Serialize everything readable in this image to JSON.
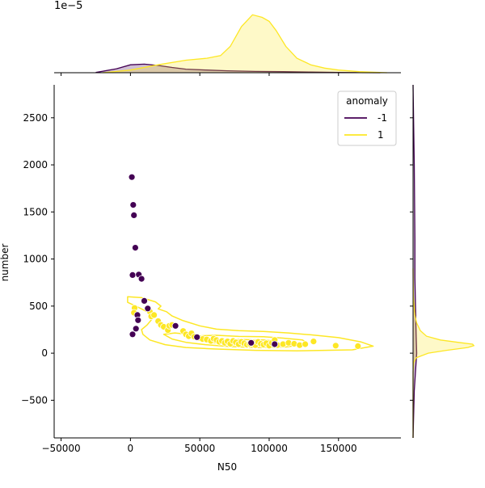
{
  "chart_data": {
    "type": "scatter",
    "xlabel": "N50",
    "ylabel": "number",
    "xlim": [
      -55000,
      195000
    ],
    "ylim": [
      -900,
      2850
    ],
    "x_ticks": [
      -50000,
      0,
      50000,
      100000,
      150000
    ],
    "y_ticks": [
      -500,
      0,
      500,
      1000,
      1500,
      2000,
      2500
    ],
    "top_scale_label": "1e−5",
    "legend": {
      "title": "anomaly",
      "placement": "top-right",
      "entries": [
        "-1",
        "1"
      ]
    },
    "colors": {
      "-1": "#440154",
      "1": "#fde725"
    },
    "series": [
      {
        "name": "-1",
        "points": [
          [
            1000,
            1870
          ],
          [
            2000,
            1575
          ],
          [
            2500,
            1465
          ],
          [
            3500,
            1120
          ],
          [
            1500,
            830
          ],
          [
            6000,
            835
          ],
          [
            8000,
            790
          ],
          [
            10000,
            555
          ],
          [
            12500,
            475
          ],
          [
            5000,
            405
          ],
          [
            5500,
            350
          ],
          [
            4000,
            260
          ],
          [
            1500,
            200
          ],
          [
            32500,
            290
          ],
          [
            48000,
            170
          ],
          [
            87000,
            110
          ],
          [
            104000,
            95
          ]
        ]
      },
      {
        "name": "1",
        "points": [
          [
            3000,
            480
          ],
          [
            2500,
            430
          ],
          [
            14000,
            440
          ],
          [
            15000,
            390
          ],
          [
            17000,
            405
          ],
          [
            20000,
            340
          ],
          [
            22000,
            300
          ],
          [
            24000,
            280
          ],
          [
            27000,
            245
          ],
          [
            28000,
            290
          ],
          [
            30000,
            300
          ],
          [
            38000,
            235
          ],
          [
            40000,
            200
          ],
          [
            42000,
            180
          ],
          [
            44000,
            210
          ],
          [
            46000,
            175
          ],
          [
            50000,
            160
          ],
          [
            52000,
            150
          ],
          [
            55000,
            145
          ],
          [
            58000,
            130
          ],
          [
            60000,
            155
          ],
          [
            62000,
            140
          ],
          [
            64000,
            120
          ],
          [
            66000,
            130
          ],
          [
            68000,
            110
          ],
          [
            70000,
            125
          ],
          [
            72000,
            100
          ],
          [
            74000,
            130
          ],
          [
            76000,
            115
          ],
          [
            78000,
            95
          ],
          [
            80000,
            120
          ],
          [
            82000,
            105
          ],
          [
            84000,
            90
          ],
          [
            86000,
            100
          ],
          [
            88000,
            115
          ],
          [
            90000,
            85
          ],
          [
            92000,
            120
          ],
          [
            94000,
            100
          ],
          [
            96000,
            90
          ],
          [
            98000,
            105
          ],
          [
            100000,
            80
          ],
          [
            102000,
            110
          ],
          [
            104000,
            140
          ],
          [
            106000,
            85
          ],
          [
            110000,
            95
          ],
          [
            114000,
            110
          ],
          [
            118000,
            100
          ],
          [
            122000,
            85
          ],
          [
            126000,
            95
          ],
          [
            132000,
            125
          ],
          [
            148000,
            80
          ],
          [
            164000,
            75
          ]
        ]
      }
    ],
    "kde_contours": [
      {
        "series": "1",
        "outline": [
          [
            -2000,
            600
          ],
          [
            8000,
            590
          ],
          [
            18000,
            545
          ],
          [
            22000,
            500
          ],
          [
            20000,
            470
          ],
          [
            26000,
            440
          ],
          [
            30000,
            395
          ],
          [
            38000,
            345
          ],
          [
            50000,
            290
          ],
          [
            62000,
            255
          ],
          [
            78000,
            240
          ],
          [
            96000,
            230
          ],
          [
            114000,
            215
          ],
          [
            130000,
            195
          ],
          [
            150000,
            165
          ],
          [
            166000,
            120
          ],
          [
            175000,
            75
          ],
          [
            160000,
            35
          ],
          [
            120000,
            25
          ],
          [
            90000,
            30
          ],
          [
            60000,
            45
          ],
          [
            40000,
            60
          ],
          [
            25000,
            90
          ],
          [
            14000,
            140
          ],
          [
            9000,
            200
          ],
          [
            8000,
            250
          ],
          [
            12000,
            300
          ],
          [
            16000,
            370
          ],
          [
            12000,
            440
          ],
          [
            4000,
            500
          ],
          [
            -2000,
            540
          ]
        ]
      },
      {
        "series": "1",
        "outline": [
          [
            50000,
            185
          ],
          [
            62000,
            190
          ],
          [
            78000,
            178
          ],
          [
            96000,
            175
          ],
          [
            110000,
            160
          ],
          [
            124000,
            140
          ],
          [
            128000,
            100
          ],
          [
            112000,
            65
          ],
          [
            92000,
            60
          ],
          [
            72000,
            70
          ],
          [
            54000,
            90
          ],
          [
            40000,
            115
          ],
          [
            30000,
            150
          ],
          [
            24000,
            200
          ],
          [
            32000,
            215
          ],
          [
            42000,
            200
          ]
        ]
      },
      {
        "series": "1",
        "outline": [
          [
            66000,
            140
          ],
          [
            80000,
            145
          ],
          [
            96000,
            140
          ],
          [
            106000,
            125
          ],
          [
            100000,
            90
          ],
          [
            84000,
            80
          ],
          [
            70000,
            90
          ],
          [
            60000,
            110
          ]
        ]
      }
    ],
    "top_density": [
      {
        "series": "-1",
        "x": [
          -25000,
          -10000,
          0,
          10000,
          20000,
          30000,
          40000,
          55000,
          70000,
          90000,
          110000,
          130000,
          150000,
          180000
        ],
        "y": [
          0.02,
          0.3,
          0.6,
          0.65,
          0.55,
          0.4,
          0.27,
          0.2,
          0.15,
          0.1,
          0.08,
          0.05,
          0.02,
          0.0
        ]
      },
      {
        "series": "1",
        "x": [
          -20000,
          0,
          20000,
          40000,
          55000,
          65000,
          72000,
          80000,
          88000,
          95000,
          100000,
          105000,
          112000,
          120000,
          130000,
          140000,
          150000,
          165000,
          185000
        ],
        "y": [
          0.0,
          0.2,
          0.6,
          0.95,
          1.1,
          1.3,
          2.0,
          3.5,
          4.4,
          4.2,
          3.9,
          3.2,
          2.0,
          1.1,
          0.6,
          0.35,
          0.2,
          0.08,
          0.0
        ]
      }
    ],
    "right_density": [
      {
        "series": "-1",
        "y": [
          -900,
          -400,
          0,
          200,
          500,
          800,
          1200,
          1600,
          2000,
          2850
        ],
        "x": [
          0.0,
          0.02,
          0.06,
          0.05,
          0.04,
          0.03,
          0.03,
          0.025,
          0.02,
          0.0
        ]
      },
      {
        "series": "1",
        "y": [
          -900,
          -200,
          -100,
          -50,
          0,
          30,
          60,
          80,
          95,
          110,
          140,
          180,
          240,
          320,
          400,
          600,
          900
        ],
        "x": [
          0.0,
          0.0,
          0.01,
          0.05,
          0.25,
          0.55,
          0.9,
          1.0,
          0.98,
          0.8,
          0.45,
          0.22,
          0.12,
          0.06,
          0.03,
          0.005,
          0.0
        ]
      }
    ]
  }
}
